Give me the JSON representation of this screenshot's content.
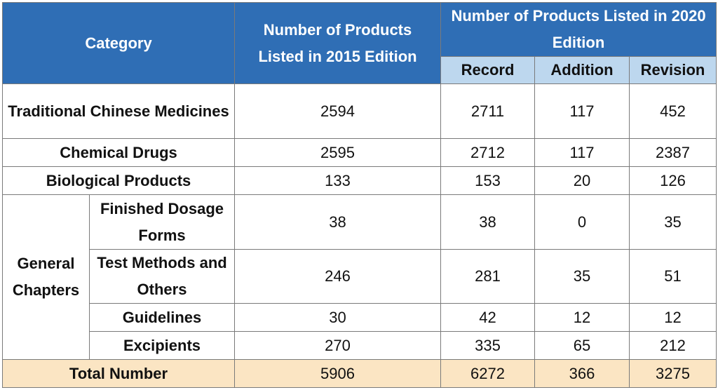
{
  "colors": {
    "header_bg": "#2f6eb5",
    "subheader_bg": "#bdd7ee",
    "total_row_bg": "#fbe5c3",
    "border": "#7a7a7a"
  },
  "header": {
    "category": "Category",
    "listed_2015": "Number of Products Listed in 2015 Edition",
    "listed_2020": "Number of Products Listed in 2020 Edition",
    "record": "Record",
    "addition": "Addition",
    "revision": "Revision"
  },
  "rows": {
    "tcm": {
      "label": "Traditional Chinese Medicines",
      "e2015": "2594",
      "record": "2711",
      "addition": "117",
      "revision": "452"
    },
    "chemical": {
      "label": "Chemical Drugs",
      "e2015": "2595",
      "record": "2712",
      "addition": "117",
      "revision": "2387"
    },
    "biological": {
      "label": "Biological Products",
      "e2015": "133",
      "record": "153",
      "addition": "20",
      "revision": "126"
    }
  },
  "general": {
    "label": "General Chapters",
    "finished": {
      "label": "Finished Dosage Forms",
      "e2015": "38",
      "record": "38",
      "addition": "0",
      "revision": "35"
    },
    "test": {
      "label": "Test Methods and Others",
      "e2015": "246",
      "record": "281",
      "addition": "35",
      "revision": "51"
    },
    "guidelines": {
      "label": "Guidelines",
      "e2015": "30",
      "record": "42",
      "addition": "12",
      "revision": "12"
    },
    "excipients": {
      "label": "Excipients",
      "e2015": "270",
      "record": "335",
      "addition": "65",
      "revision": "212"
    }
  },
  "total": {
    "label": "Total Number",
    "e2015": "5906",
    "record": "6272",
    "addition": "366",
    "revision": "3275"
  }
}
